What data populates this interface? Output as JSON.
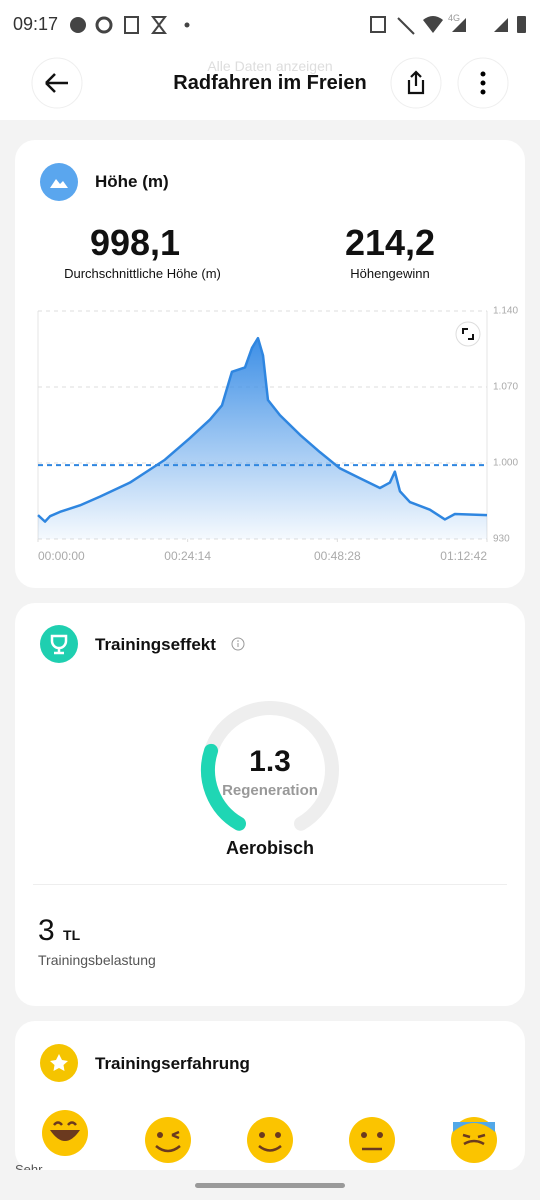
{
  "status_bar": {
    "time": "09:17",
    "network": "4G"
  },
  "header": {
    "title": "Radfahren im Freien",
    "behind_text": "Alle Daten anzeigen"
  },
  "altitude_card": {
    "title": "Höhe (m)",
    "stats": [
      {
        "value": "998,1",
        "label": "Durchschnittliche Höhe (m)"
      },
      {
        "value": "214,2",
        "label": "Höhengewinn"
      }
    ],
    "chart_data": {
      "type": "area",
      "color": "#2f86e0",
      "x": [
        0,
        68,
        117,
        214,
        408,
        602,
        894,
        1088,
        1233,
        1476,
        1671,
        1787,
        1884,
        2011,
        2079,
        2137,
        2186,
        2234,
        2351,
        2545,
        2739,
        2934,
        3128,
        3322,
        3419,
        3467,
        3516,
        3613,
        3807,
        3953,
        4050,
        4362
      ],
      "series": [
        {
          "color": "#2f86e0",
          "values": [
            952,
            946,
            951,
            955,
            961,
            969,
            982,
            994,
            1003,
            1023,
            1040,
            1053,
            1084,
            1088,
            1106,
            1115,
            1099,
            1058,
            1044,
            1026,
            1010,
            995,
            986,
            977,
            982,
            992,
            974,
            964,
            957,
            948,
            953,
            952
          ]
        }
      ],
      "average_line": 998.1,
      "xlim": [
        0,
        4362
      ],
      "xticks": [
        {
          "value": 0,
          "label": "00:00:00"
        },
        {
          "value": 1454,
          "label": "00:24:14"
        },
        {
          "value": 2908,
          "label": "00:48:28"
        },
        {
          "value": 4362,
          "label": "01:12:42"
        }
      ],
      "ylim": [
        930,
        1140
      ],
      "yticks": [
        {
          "value": 930,
          "label": "930"
        },
        {
          "value": 1000,
          "label": "1.000"
        },
        {
          "value": 1070,
          "label": "1.070"
        },
        {
          "value": 1140,
          "label": "1.140"
        }
      ],
      "grid": true
    }
  },
  "training_card": {
    "title": "Trainingseffekt",
    "gauge": {
      "value": 1.3,
      "value_label": "1.3",
      "label": "Regeneration"
    },
    "type_label": "Aerobisch",
    "load": {
      "value": "3",
      "unit": "TL",
      "label": "Trainingsbelastung"
    }
  },
  "experience_card": {
    "title": "Trainingserfahrung",
    "first_label": "Sehr"
  }
}
